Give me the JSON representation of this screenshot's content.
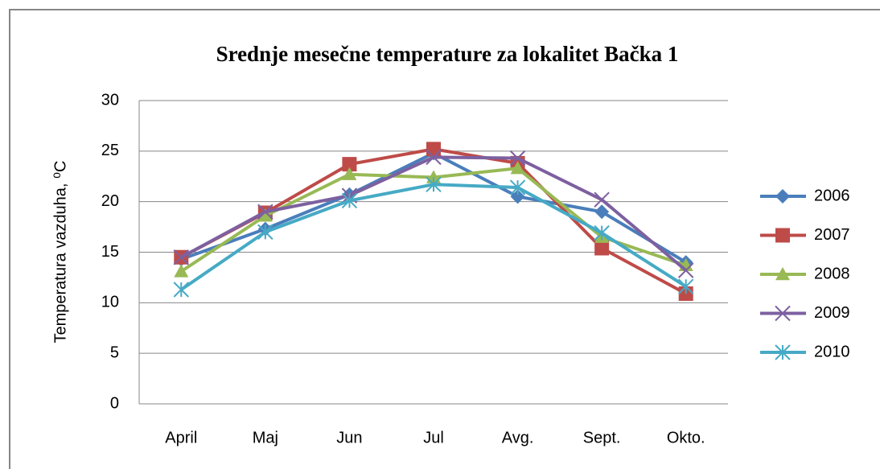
{
  "chart_data": {
    "type": "line",
    "title": "Srednje mesečne temperature za lokalitet Bačka 1",
    "y_label": "Temperatura vazduha, ⁰C",
    "categories": [
      "April",
      "Maj",
      "Jun",
      "Jul",
      "Avg.",
      "Sept.",
      "Okto."
    ],
    "series": [
      {
        "name": "2006",
        "color": "#4a7ebb",
        "marker": "diamond",
        "values": [
          14.3,
          17.3,
          20.7,
          24.8,
          20.5,
          19.0,
          14.0
        ]
      },
      {
        "name": "2007",
        "color": "#be4b48",
        "marker": "square",
        "values": [
          14.5,
          18.9,
          23.7,
          25.2,
          23.8,
          15.4,
          10.9
        ]
      },
      {
        "name": "2008",
        "color": "#98b954",
        "marker": "triangle",
        "values": [
          13.1,
          18.6,
          22.7,
          22.4,
          23.3,
          16.5,
          13.7
        ]
      },
      {
        "name": "2009",
        "color": "#7d60a0",
        "marker": "x",
        "values": [
          14.5,
          19.0,
          20.6,
          24.4,
          24.3,
          20.2,
          13.2
        ]
      },
      {
        "name": "2010",
        "color": "#46aac5",
        "marker": "star",
        "values": [
          11.3,
          17.0,
          20.1,
          21.7,
          21.4,
          16.9,
          11.6
        ]
      }
    ],
    "ylim": [
      0,
      30
    ],
    "yticks": [
      0,
      5,
      10,
      15,
      20,
      25,
      30
    ],
    "grid": true,
    "legend": "right"
  }
}
